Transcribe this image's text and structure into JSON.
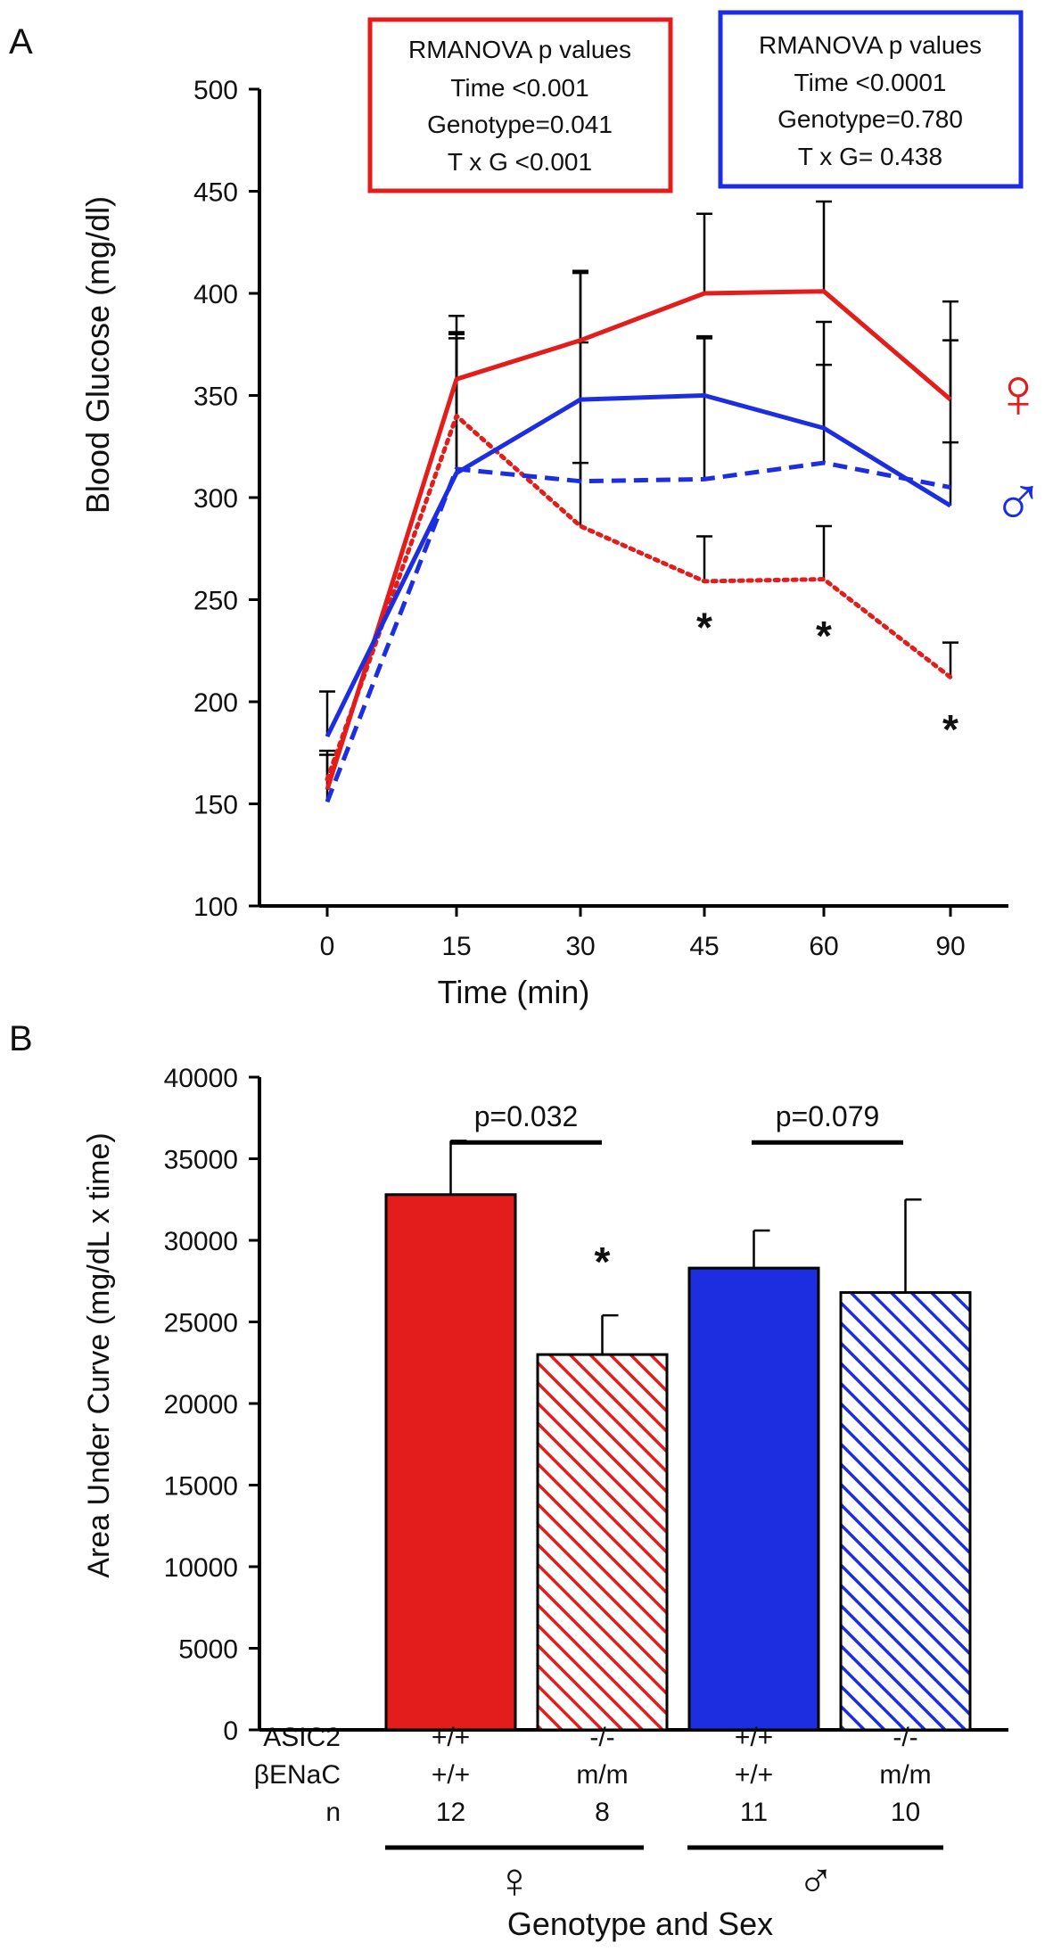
{
  "colors": {
    "female": "#e31c1c",
    "male": "#1d2ee0",
    "axis": "#000000"
  },
  "chart_data": [
    {
      "panel_label": "A",
      "type": "line",
      "xlabel": "Time (min)",
      "ylabel": "Blood Glucose (mg/dl)",
      "x": [
        "0",
        "15",
        "30",
        "45",
        "60",
        "90"
      ],
      "ylim": [
        100,
        500
      ],
      "yticks": [
        "100",
        "150",
        "200",
        "250",
        "300",
        "350",
        "400",
        "450",
        "500"
      ],
      "series": [
        {
          "name": "female +/+ +/+",
          "sex": "female",
          "style": "solid",
          "values": [
            157,
            358,
            377,
            400,
            401,
            348
          ],
          "err": [
            0,
            31,
            34,
            39,
            44,
            48
          ]
        },
        {
          "name": "female -/- m/m",
          "sex": "female",
          "style": "dotted",
          "values": [
            162,
            340,
            286,
            259,
            260,
            212
          ],
          "err": [
            12,
            40,
            31,
            22,
            26,
            17
          ]
        },
        {
          "name": "male +/+ +/+",
          "sex": "male",
          "style": "solid",
          "values": [
            183,
            312,
            348,
            350,
            334,
            296
          ],
          "err": [
            22,
            66,
            62,
            29,
            52,
            81
          ]
        },
        {
          "name": "male -/- m/m",
          "sex": "male",
          "style": "dashed",
          "values": [
            151,
            314,
            308,
            309,
            317,
            305
          ],
          "err": [
            25,
            67,
            68,
            69,
            48,
            22
          ]
        }
      ],
      "asterisks": [
        {
          "text": "*",
          "x": "45",
          "y": 239
        },
        {
          "text": "*",
          "x": "60",
          "y": 235
        },
        {
          "text": "*",
          "x": "90",
          "y": 189
        }
      ],
      "sex_symbols": {
        "female": "♀",
        "male": "♂"
      },
      "stat_boxes": [
        {
          "sex": "female",
          "lines": [
            "RMANOVA p values",
            "Time <0.001",
            "Genotype=0.041",
            "T x G <0.001"
          ]
        },
        {
          "sex": "male",
          "lines": [
            "RMANOVA p values",
            "Time <0.0001",
            "Genotype=0.780",
            "T x G= 0.438"
          ]
        }
      ]
    },
    {
      "panel_label": "B",
      "type": "bar",
      "ylabel": "Area Under Curve (mg/dL x time)",
      "xlabel": "Genotype and Sex",
      "ylim": [
        0,
        40000
      ],
      "yticks": [
        "0",
        "5000",
        "10000",
        "15000",
        "20000",
        "25000",
        "30000",
        "35000",
        "40000"
      ],
      "bars": [
        {
          "sex": "female",
          "fill": "solid",
          "value": 32800,
          "err": 3300,
          "asic2": "+/+",
          "benac": "+/+",
          "n": "12"
        },
        {
          "sex": "female",
          "fill": "hatched",
          "value": 23000,
          "err": 2400,
          "asic2": "-/-",
          "benac": "m/m",
          "n": "8"
        },
        {
          "sex": "male",
          "fill": "solid",
          "value": 28300,
          "err": 2300,
          "asic2": "+/+",
          "benac": "+/+",
          "n": "11"
        },
        {
          "sex": "male",
          "fill": "hatched",
          "value": 26800,
          "err": 5700,
          "asic2": "-/-",
          "benac": "m/m",
          "n": "10"
        }
      ],
      "row_labels": {
        "asic2": "ASIC2",
        "benac": "βENaC",
        "n": "n"
      },
      "comparisons": [
        {
          "label": "p=0.032"
        },
        {
          "label": "p=0.079"
        }
      ],
      "asterisk": "*",
      "group_labels": [
        "♀",
        "♂"
      ]
    }
  ]
}
